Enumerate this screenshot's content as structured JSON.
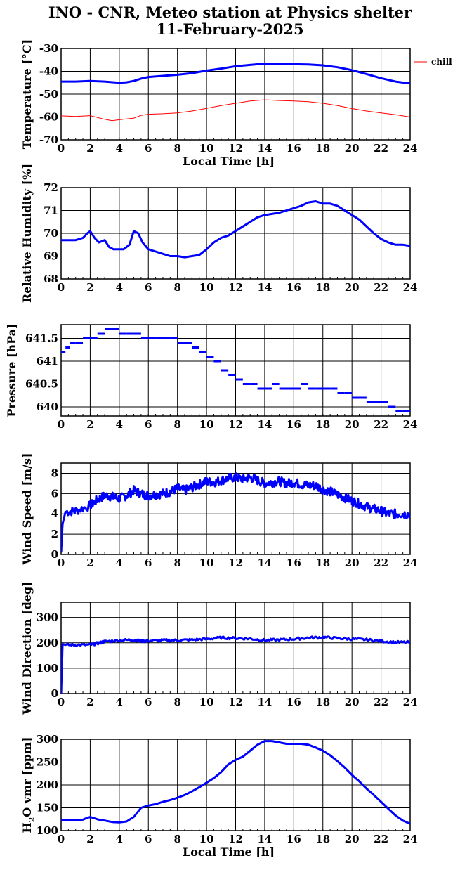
{
  "title": {
    "line1": "INO - CNR, Meteo station at Physics shelter",
    "line2": "11-February-2025"
  },
  "colors": {
    "main": "#0000ff",
    "chill": "#ff0000",
    "grid": "#000000"
  },
  "chart_data": [
    {
      "type": "line",
      "name": "temperature",
      "xlabel": "Local Time [h]",
      "ylabel": "Temperature [°C]",
      "xlim": [
        0,
        24
      ],
      "ylim": [
        -70,
        -30
      ],
      "xticks": [
        0,
        2,
        4,
        6,
        8,
        10,
        12,
        14,
        16,
        18,
        20,
        22,
        24
      ],
      "yticks": [
        -70,
        -60,
        -50,
        -40,
        -30
      ],
      "grid": true,
      "legend": {
        "position": "right",
        "entries": [
          "chill"
        ]
      },
      "series": [
        {
          "color": "#0000ff",
          "width": 3,
          "x": [
            0,
            1,
            2,
            3,
            4,
            4.5,
            5,
            5.5,
            6,
            7,
            8,
            9,
            10,
            11,
            12,
            13,
            14,
            15,
            16,
            17,
            18,
            19,
            20,
            21,
            22,
            23,
            24
          ],
          "y": [
            -44.5,
            -44.5,
            -44.2,
            -44.5,
            -45,
            -44.8,
            -44.2,
            -43.2,
            -42.5,
            -42,
            -41.5,
            -40.8,
            -39.7,
            -38.8,
            -37.8,
            -37.2,
            -36.6,
            -36.8,
            -36.9,
            -37,
            -37.4,
            -38.2,
            -39.5,
            -41.2,
            -43,
            -44.5,
            -45.3
          ]
        },
        {
          "name": "chill",
          "color": "#ff0000",
          "width": 1,
          "x": [
            0,
            1,
            2,
            3,
            3.5,
            4,
            5,
            5.5,
            6,
            7,
            8,
            9,
            10,
            11,
            12,
            13,
            14,
            15,
            16,
            17,
            18,
            19,
            20,
            21,
            22,
            23,
            24
          ],
          "y": [
            -59.5,
            -59.8,
            -59.4,
            -61,
            -61.6,
            -61.2,
            -60.5,
            -59.3,
            -58.8,
            -58.6,
            -58.2,
            -57.4,
            -56.2,
            -55,
            -54,
            -53,
            -52.5,
            -52.8,
            -53,
            -53.3,
            -54,
            -55,
            -56.3,
            -57.4,
            -58.2,
            -59,
            -60
          ]
        }
      ]
    },
    {
      "type": "line",
      "name": "humidity",
      "xlabel": "",
      "ylabel": "Relative Humidity [%]",
      "xlim": [
        0,
        24
      ],
      "ylim": [
        68,
        72
      ],
      "xticks": [
        0,
        2,
        4,
        6,
        8,
        10,
        12,
        14,
        16,
        18,
        20,
        22,
        24
      ],
      "yticks": [
        68,
        69,
        70,
        71,
        72
      ],
      "grid": true,
      "series": [
        {
          "color": "#0000ff",
          "width": 3,
          "x": [
            0,
            0.5,
            1,
            1.5,
            1.8,
            2,
            2.3,
            2.6,
            3,
            3.3,
            3.6,
            4,
            4.3,
            4.7,
            5,
            5.3,
            5.6,
            6,
            6.5,
            7,
            7.5,
            8,
            8.5,
            9,
            9.5,
            10,
            10.5,
            11,
            11.5,
            12,
            12.5,
            13,
            13.5,
            14,
            14.5,
            15,
            15.5,
            16,
            16.5,
            17,
            17.5,
            18,
            18.5,
            19,
            19.5,
            20,
            20.5,
            21,
            21.5,
            22,
            22.5,
            23,
            23.5,
            24
          ],
          "y": [
            69.7,
            69.7,
            69.7,
            69.8,
            70,
            70.1,
            69.8,
            69.6,
            69.7,
            69.4,
            69.3,
            69.3,
            69.3,
            69.5,
            70.1,
            70.0,
            69.6,
            69.3,
            69.2,
            69.1,
            69.0,
            69.0,
            68.95,
            69.0,
            69.05,
            69.3,
            69.6,
            69.8,
            69.9,
            70.1,
            70.3,
            70.5,
            70.7,
            70.8,
            70.85,
            70.9,
            71.0,
            71.1,
            71.2,
            71.35,
            71.4,
            71.3,
            71.3,
            71.2,
            71.0,
            70.8,
            70.6,
            70.3,
            70.0,
            69.75,
            69.6,
            69.5,
            69.5,
            69.45
          ]
        }
      ]
    },
    {
      "type": "scatter",
      "name": "pressure",
      "xlabel": "",
      "ylabel": "Pressure [hPa]",
      "xlim": [
        0,
        24
      ],
      "ylim": [
        639.8,
        641.8
      ],
      "xticks": [
        0,
        2,
        4,
        6,
        8,
        10,
        12,
        14,
        16,
        18,
        20,
        22,
        24
      ],
      "yticks": [
        640,
        640.5,
        641,
        641.5
      ],
      "ytick_labels": [
        "640",
        "640.5",
        "641",
        "641.5"
      ],
      "grid": true,
      "series": [
        {
          "color": "#0000ff",
          "style": "steps",
          "x": [
            0,
            0.3,
            0.6,
            1,
            1.5,
            2,
            2.5,
            3,
            3.5,
            4,
            4.5,
            5,
            5.5,
            6,
            6.5,
            7,
            7.5,
            8,
            8.5,
            9,
            9.5,
            10,
            10.5,
            11,
            11.5,
            12,
            12.5,
            13,
            13.5,
            14,
            14.5,
            15,
            15.5,
            16,
            16.5,
            17,
            17.5,
            18,
            18.5,
            19,
            19.5,
            20,
            20.5,
            21,
            21.5,
            22,
            22.5,
            23,
            23.5,
            24
          ],
          "y": [
            641.2,
            641.3,
            641.4,
            641.4,
            641.5,
            641.5,
            641.6,
            641.7,
            641.7,
            641.6,
            641.6,
            641.6,
            641.5,
            641.5,
            641.5,
            641.5,
            641.5,
            641.4,
            641.4,
            641.3,
            641.2,
            641.1,
            641.0,
            640.8,
            640.7,
            640.6,
            640.5,
            640.5,
            640.4,
            640.4,
            640.5,
            640.4,
            640.4,
            640.4,
            640.5,
            640.4,
            640.4,
            640.4,
            640.4,
            640.3,
            640.3,
            640.2,
            640.2,
            640.1,
            640.1,
            640.1,
            640.0,
            639.9,
            639.9,
            639.8
          ]
        }
      ]
    },
    {
      "type": "line",
      "name": "wind_speed",
      "xlabel": "",
      "ylabel": "Wind Speed [m/s]",
      "xlim": [
        0,
        24
      ],
      "ylim": [
        0,
        9
      ],
      "xticks": [
        0,
        2,
        4,
        6,
        8,
        10,
        12,
        14,
        16,
        18,
        20,
        22,
        24
      ],
      "yticks": [
        0,
        2,
        4,
        6,
        8
      ],
      "grid": true,
      "series": [
        {
          "color": "#0000ff",
          "width": 3,
          "noisy": true,
          "x": [
            0,
            0.1,
            0.3,
            1,
            2,
            2.5,
            3,
            3.5,
            4,
            4.5,
            5,
            5.5,
            6,
            6.5,
            7,
            7.5,
            8,
            8.5,
            9,
            9.5,
            10,
            10.5,
            11,
            11.5,
            12,
            12.5,
            13,
            13.5,
            14,
            14.5,
            15,
            15.5,
            16,
            16.5,
            17,
            17.5,
            18,
            18.5,
            19,
            19.5,
            20,
            20.5,
            21,
            21.5,
            22,
            22.5,
            23,
            23.5,
            24
          ],
          "y": [
            0.2,
            3,
            4.2,
            4.3,
            4.8,
            5.4,
            5.8,
            5.7,
            5.5,
            5.8,
            6.3,
            6.0,
            5.8,
            5.9,
            6.0,
            6.2,
            6.5,
            6.3,
            6.6,
            6.9,
            7.2,
            7.1,
            7.3,
            7.5,
            7.6,
            7.4,
            7.6,
            7.3,
            7.0,
            7.1,
            7.2,
            7.0,
            7.1,
            6.9,
            6.8,
            6.8,
            6.4,
            6.2,
            5.9,
            5.6,
            5.3,
            5.0,
            4.7,
            4.5,
            4.3,
            4.0,
            4.0,
            4.0,
            4.0
          ]
        }
      ]
    },
    {
      "type": "line",
      "name": "wind_direction",
      "xlabel": "",
      "ylabel": "Wind Direction [deg]",
      "xlim": [
        0,
        24
      ],
      "ylim": [
        0,
        360
      ],
      "xticks": [
        0,
        2,
        4,
        6,
        8,
        10,
        12,
        14,
        16,
        18,
        20,
        22,
        24
      ],
      "yticks": [
        0,
        100,
        200,
        300
      ],
      "grid": true,
      "series": [
        {
          "color": "#0000ff",
          "width": 3,
          "noisy": true,
          "x": [
            0,
            0.1,
            0.3,
            1,
            2,
            2.5,
            3,
            4,
            5,
            5.5,
            6,
            7,
            8,
            9,
            10,
            11,
            12,
            13,
            14,
            15,
            16,
            17,
            18,
            19,
            20,
            21,
            22,
            23,
            24
          ],
          "y": [
            0,
            195,
            192,
            192,
            192,
            198,
            205,
            210,
            212,
            207,
            208,
            210,
            210,
            212,
            215,
            220,
            218,
            216,
            210,
            212,
            215,
            220,
            222,
            218,
            215,
            212,
            207,
            202,
            202
          ]
        }
      ]
    },
    {
      "type": "line",
      "name": "h2o_vmr",
      "xlabel": "Local Time [h]",
      "ylabel": "H2O vmr [ppm]",
      "xlim": [
        0,
        24
      ],
      "ylim": [
        100,
        300
      ],
      "xticks": [
        0,
        2,
        4,
        6,
        8,
        10,
        12,
        14,
        16,
        18,
        20,
        22,
        24
      ],
      "yticks": [
        100,
        150,
        200,
        250,
        300
      ],
      "grid": true,
      "series": [
        {
          "color": "#0000ff",
          "width": 3,
          "x": [
            0,
            0.5,
            1,
            1.5,
            1.8,
            2,
            2.3,
            2.6,
            3,
            3.5,
            4,
            4.5,
            5,
            5.5,
            6,
            6.5,
            7,
            7.5,
            8,
            8.5,
            9,
            9.5,
            10,
            10.5,
            11,
            11.5,
            12,
            12.5,
            13,
            13.5,
            14,
            14.5,
            15,
            15.5,
            16,
            16.5,
            17,
            17.5,
            18,
            18.5,
            19,
            19.5,
            20,
            20.5,
            21,
            21.5,
            22,
            22.5,
            23,
            23.5,
            24
          ],
          "y": [
            124,
            123,
            123,
            124,
            128,
            130,
            127,
            124,
            122,
            119,
            118,
            120,
            130,
            150,
            155,
            158,
            163,
            167,
            172,
            178,
            186,
            195,
            205,
            215,
            228,
            245,
            255,
            262,
            275,
            288,
            296,
            296,
            293,
            290,
            290,
            290,
            288,
            282,
            275,
            265,
            252,
            238,
            222,
            208,
            192,
            178,
            163,
            148,
            133,
            122,
            115
          ]
        }
      ]
    }
  ]
}
